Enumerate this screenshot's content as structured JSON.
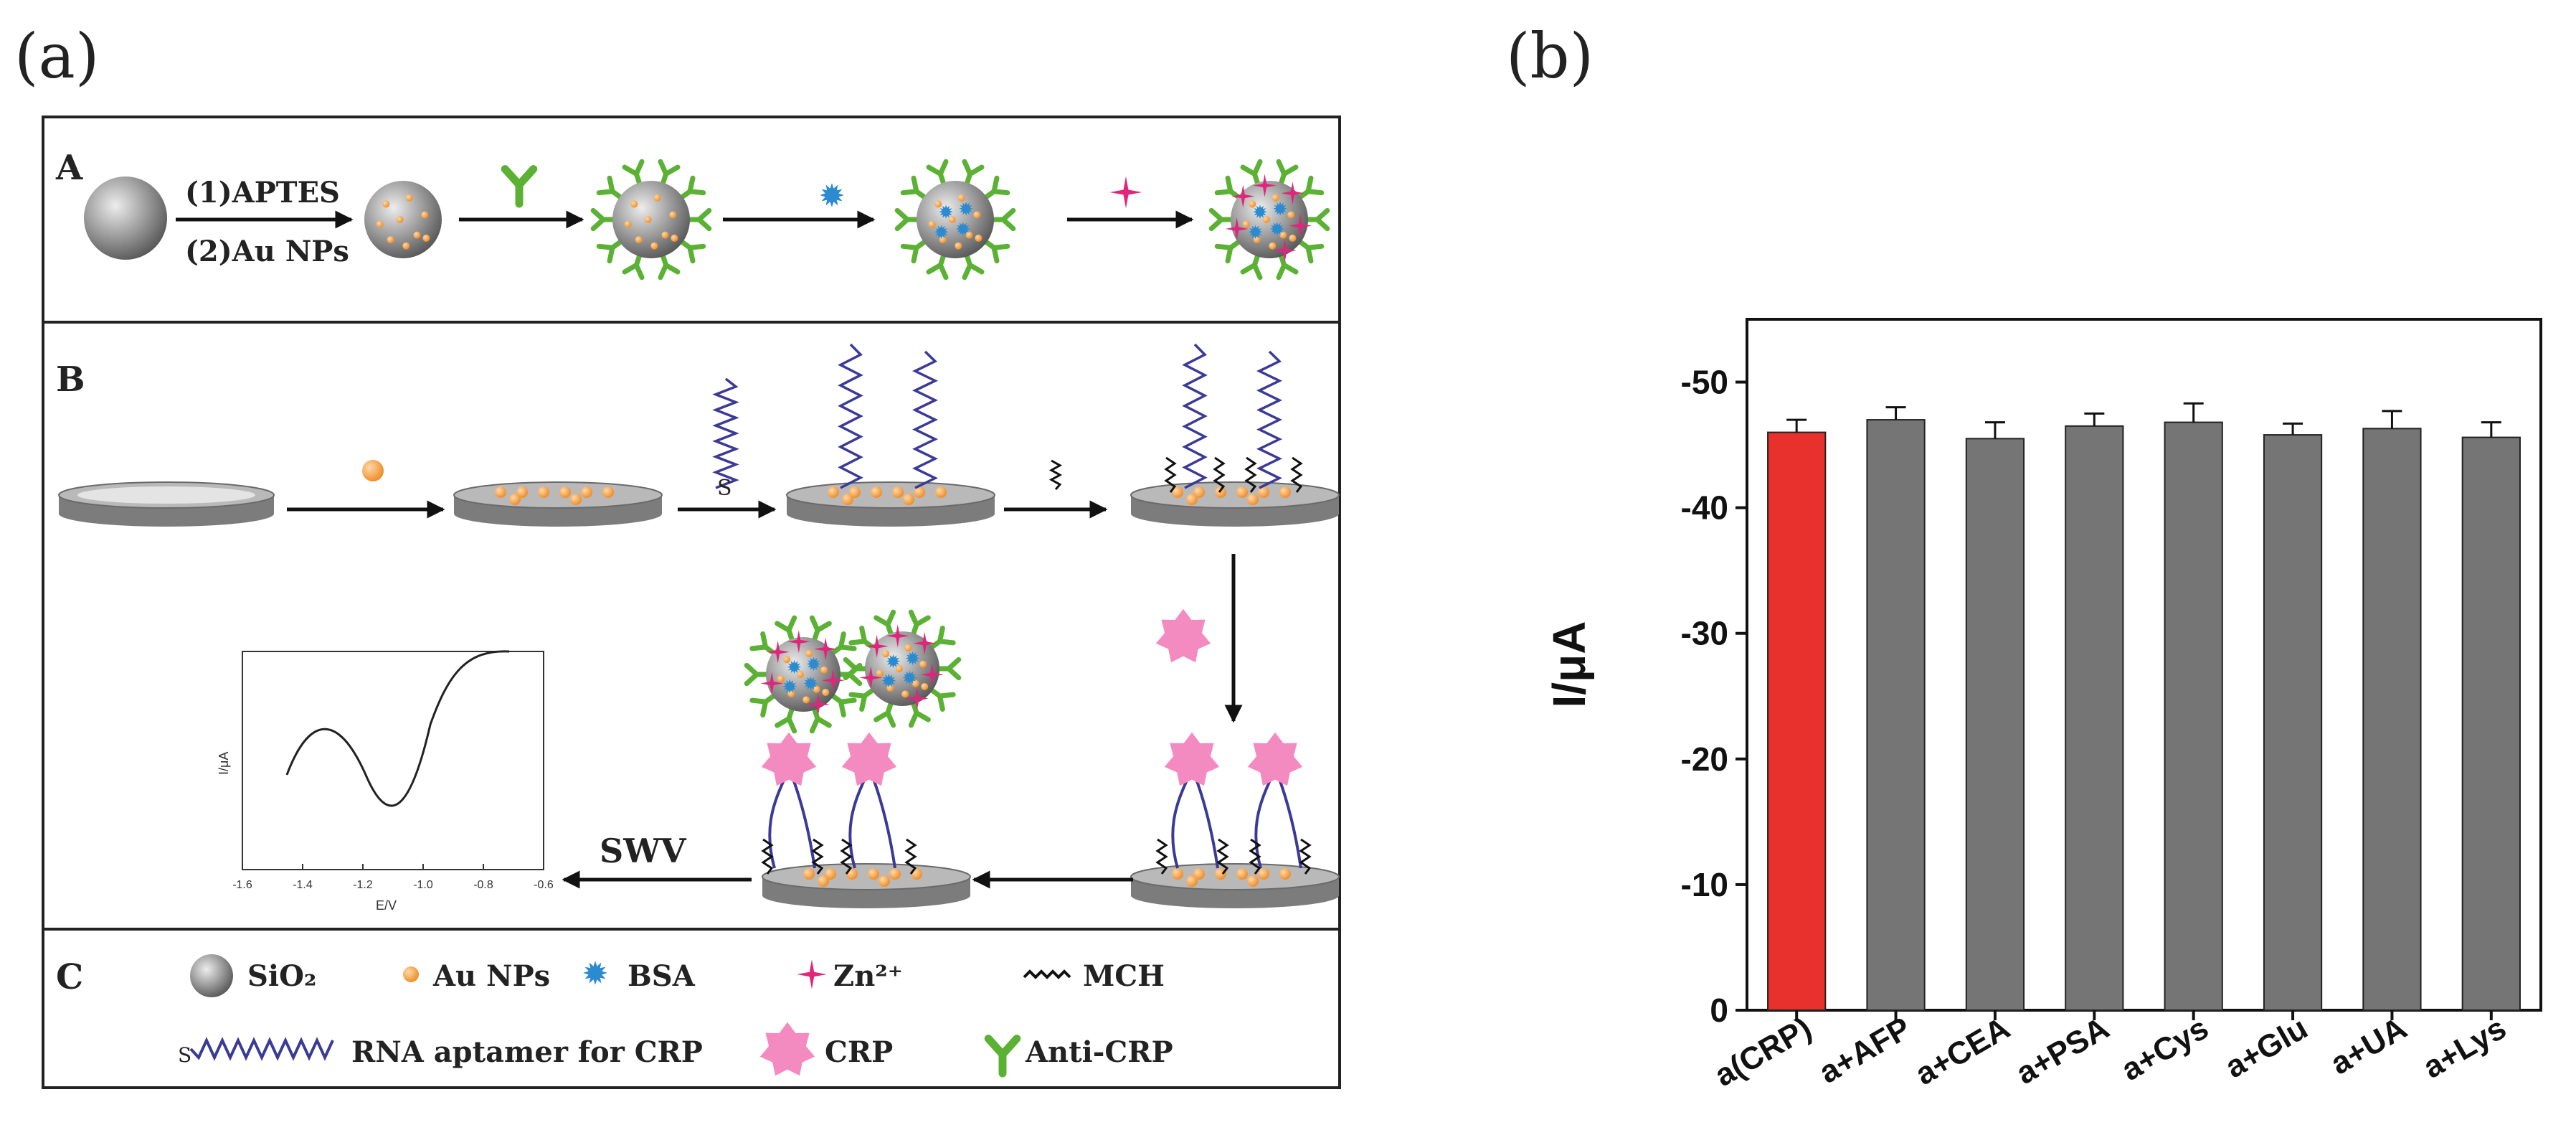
{
  "panel_a": {
    "label": "(a)",
    "section_A": {
      "label": "A",
      "step1_line1": "(1)APTES",
      "step1_line2": "(2)Au NPs"
    },
    "section_B": {
      "label": "B",
      "thiol_label": "S",
      "swv_label": "SWV",
      "inset": {
        "ylabel": "I/μA",
        "xlabel": "E/V",
        "xticks": [
          "-1.6",
          "-1.4",
          "-1.2",
          "-1.0",
          "-0.8",
          "-0.6"
        ]
      }
    },
    "section_C": {
      "label": "C",
      "legend": {
        "sio2": "SiO₂",
        "au_nps": "Au NPs",
        "bsa": "BSA",
        "zn": "Zn²⁺",
        "mch": "MCH",
        "rna_s": "S",
        "rna": "RNA aptamer for CRP",
        "crp": "CRP",
        "anti_crp": "Anti-CRP"
      }
    }
  },
  "panel_b": {
    "label": "(b)"
  },
  "colors": {
    "highlight_bar": "#e8302c",
    "bar": "#757575",
    "antibody": "#5bb134",
    "au": "#f39a3a",
    "bsa": "#2c8bd0",
    "zn": "#e0257a",
    "crp": "#f48bc0",
    "aptamer": "#3b3a96"
  },
  "chart_data": {
    "type": "bar",
    "title": "",
    "xlabel": "",
    "ylabel": "I/μA",
    "categories": [
      "a(CRP)",
      "a+AFP",
      "a+CEA",
      "a+PSA",
      "a+Cys",
      "a+Glu",
      "a+UA",
      "a+Lys"
    ],
    "values": [
      -46.0,
      -47.0,
      -45.5,
      -46.5,
      -46.8,
      -45.8,
      -46.3,
      -45.6
    ],
    "errors": [
      1.0,
      1.0,
      1.3,
      1.0,
      1.5,
      0.9,
      1.4,
      1.2
    ],
    "ylim": [
      0,
      -55
    ],
    "yticks": [
      0,
      -10,
      -20,
      -30,
      -40,
      -50
    ],
    "ytick_labels": [
      "0",
      "-10",
      "-20",
      "-30",
      "-40",
      "-50"
    ],
    "highlight_index": 0
  }
}
